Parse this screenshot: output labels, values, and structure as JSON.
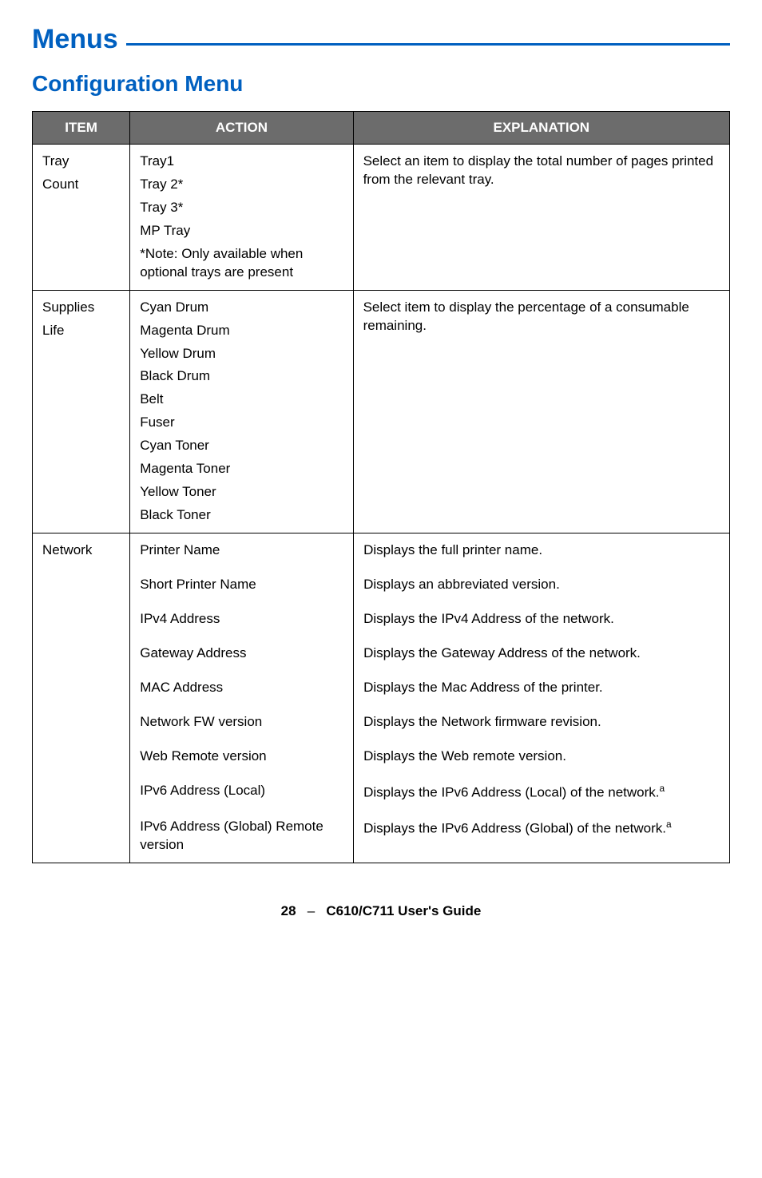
{
  "heading": "Menus",
  "subheading": "Configuration Menu",
  "columns": [
    "ITEM",
    "ACTION",
    "EXPLANATION"
  ],
  "rows": {
    "tray": {
      "item": [
        "Tray",
        "Count"
      ],
      "action": [
        "Tray1",
        "Tray 2*",
        "Tray 3*",
        "MP Tray",
        "*Note: Only available when optional trays are present"
      ],
      "expl": [
        "Select an item to display the total number of pages printed from the relevant tray."
      ]
    },
    "supplies": {
      "item": [
        "Supplies",
        "Life"
      ],
      "action": [
        "Cyan Drum",
        "Magenta Drum",
        "Yellow Drum",
        "Black Drum",
        "Belt",
        "Fuser",
        "Cyan Toner",
        "Magenta Toner",
        "Yellow Toner",
        "Black Toner"
      ],
      "expl": [
        "Select item to display the percentage of a consumable remaining."
      ]
    },
    "network": {
      "item": [
        "Network"
      ],
      "pairs": [
        {
          "a": "Printer Name",
          "e": "Displays the full printer name."
        },
        {
          "a": "Short Printer Name",
          "e": "Displays an abbreviated version."
        },
        {
          "a": "IPv4 Address",
          "e": "Displays the IPv4 Address of the network."
        },
        {
          "a": "Gateway Address",
          "e": "Displays the Gateway Address of the network."
        },
        {
          "a": "MAC Address",
          "e": "Displays the Mac Address of the printer."
        },
        {
          "a": "Network FW version",
          "e": "Displays the Network firmware revision."
        },
        {
          "a": "Web Remote version",
          "e": "Displays the Web remote version."
        },
        {
          "a": "IPv6 Address (Local)",
          "e": "Displays the IPv6 Address (Local) of the network.",
          "sup": "a"
        },
        {
          "a": "IPv6 Address (Global) Remote version",
          "e": "Displays the IPv6 Address (Global) of the network.",
          "sup": "a"
        }
      ]
    }
  },
  "footer": {
    "page": "28",
    "sep": "–",
    "title": "C610/C711 User's Guide"
  },
  "colors": {
    "accent": "#0060c0",
    "header_bg": "#6c6c6c",
    "border": "#000000",
    "text": "#000000",
    "bg": "#ffffff"
  }
}
